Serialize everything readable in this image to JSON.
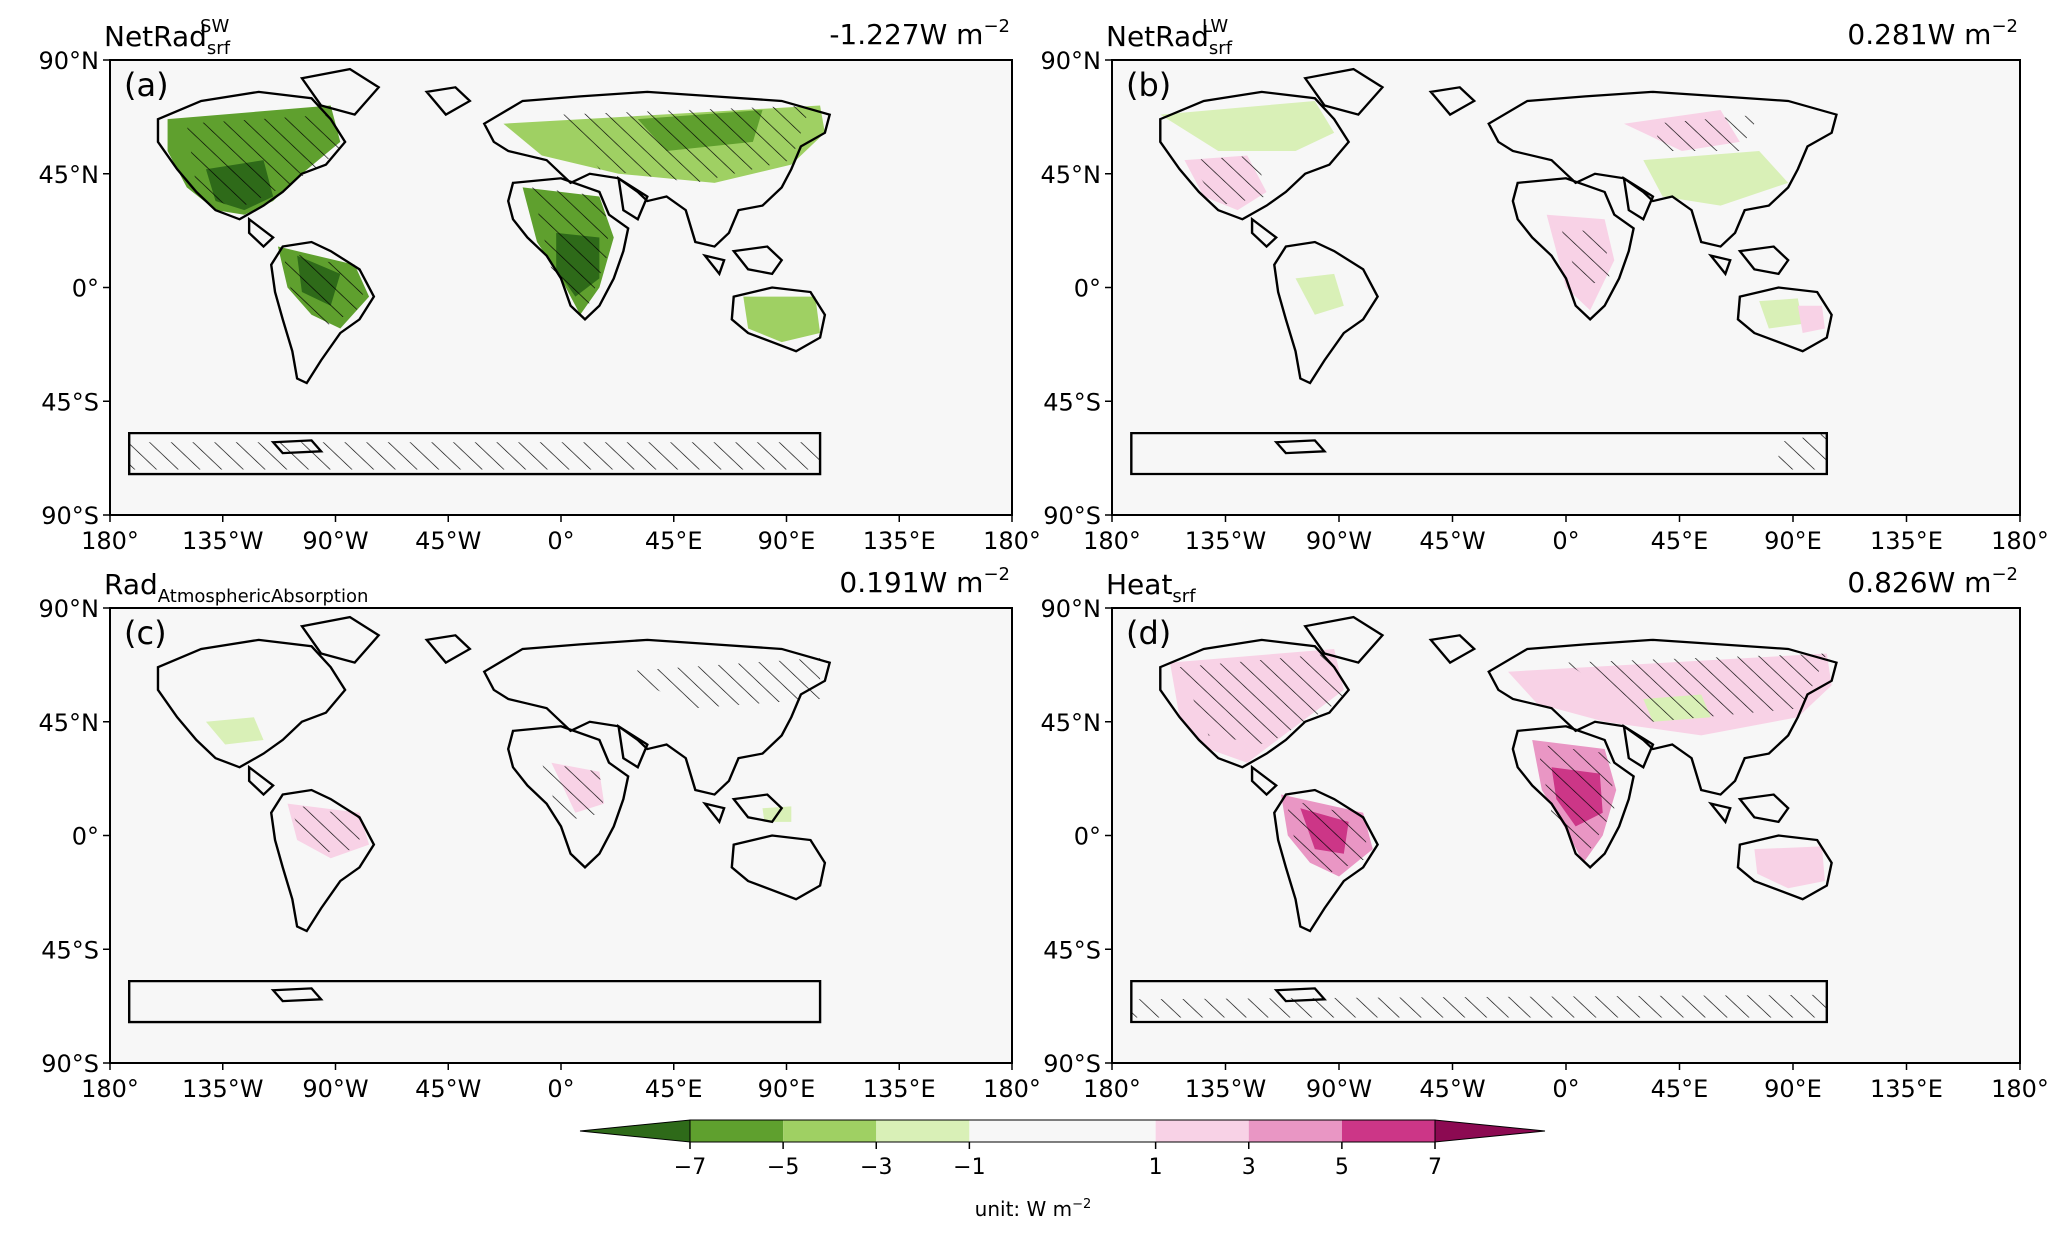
{
  "figure": {
    "panels": [
      {
        "letter": "(a)",
        "title_main": "NetRad",
        "title_sub": "srf",
        "title_sup": "SW",
        "value": "-1.227",
        "unit_main": "W m",
        "unit_exp": "−2"
      },
      {
        "letter": "(b)",
        "title_main": "NetRad",
        "title_sub": "srf",
        "title_sup": "LW",
        "value": "0.281",
        "unit_main": "W m",
        "unit_exp": "−2"
      },
      {
        "letter": "(c)",
        "title_main": "Rad",
        "title_sub": "AtmosphericAbsorption",
        "title_sup": "",
        "value": "0.191",
        "unit_main": "W m",
        "unit_exp": "−2"
      },
      {
        "letter": "(d)",
        "title_main": "Heat",
        "title_sub": "srf",
        "title_sup": "",
        "value": "0.826",
        "unit_main": "W m",
        "unit_exp": "−2"
      }
    ],
    "lat_ticks": [
      "90°N",
      "45°N",
      "0°",
      "45°S",
      "90°S"
    ],
    "lon_ticks": [
      "180°",
      "135°W",
      "90°W",
      "45°W",
      "0°",
      "45°E",
      "90°E",
      "135°E",
      "180°"
    ],
    "colorbar": {
      "ticks": [
        "−7",
        "−5",
        "−3",
        "−1",
        "1",
        "3",
        "5",
        "7"
      ],
      "colors": [
        "#2e6a19",
        "#5fa02e",
        "#9fd063",
        "#d9f0b7",
        "#f7f7f7",
        "#f8d2e6",
        "#e996c4",
        "#cc3687",
        "#8c0a52"
      ],
      "label_main": "unit: W m",
      "label_exp": "−2"
    }
  }
}
